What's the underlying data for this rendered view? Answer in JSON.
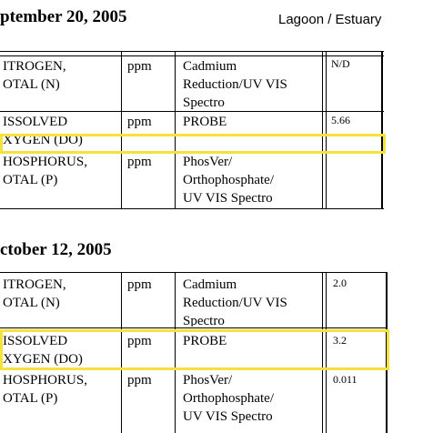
{
  "header": {
    "date1": "ptember 20, 2005",
    "site": "Lagoon / Estuary",
    "date2": "ctober 12, 2005"
  },
  "table1": {
    "rows": [
      {
        "param": [
          "ITROGEN,",
          "OTAL (N)"
        ],
        "unit": "ppm",
        "method": [
          "Cadmium",
          "Reduction/UV VIS",
          "Spectro"
        ],
        "value": "N/D"
      },
      {
        "param": [
          "ISSOLVED",
          "XYGEN (DO)"
        ],
        "unit": "ppm",
        "method": [
          "PROBE"
        ],
        "value": "5.66"
      },
      {
        "param": [
          "HOSPHORUS,",
          "OTAL (P)"
        ],
        "unit": "ppm",
        "method": [
          "PhosVer/",
          "Orthophosphate/",
          "UV VIS Spectro"
        ],
        "value": ""
      }
    ]
  },
  "table2": {
    "rows": [
      {
        "param": [
          "ITROGEN,",
          "OTAL (N)"
        ],
        "unit": "ppm",
        "method": [
          "Cadmium",
          "Reduction/UV VIS",
          "Spectro"
        ],
        "value": "2.0"
      },
      {
        "param": [
          "ISSOLVED",
          "XYGEN (DO)"
        ],
        "unit": "ppm",
        "method": [
          "PROBE"
        ],
        "value": "3.2"
      },
      {
        "param": [
          "HOSPHORUS,",
          "OTAL (P)"
        ],
        "unit": "ppm",
        "method": [
          "PhosVer/",
          "Orthophosphate/",
          "UV VIS Spectro"
        ],
        "value": "0.011"
      }
    ]
  },
  "colors": {
    "highlight": "#f5e33b",
    "rule": "#000000"
  }
}
